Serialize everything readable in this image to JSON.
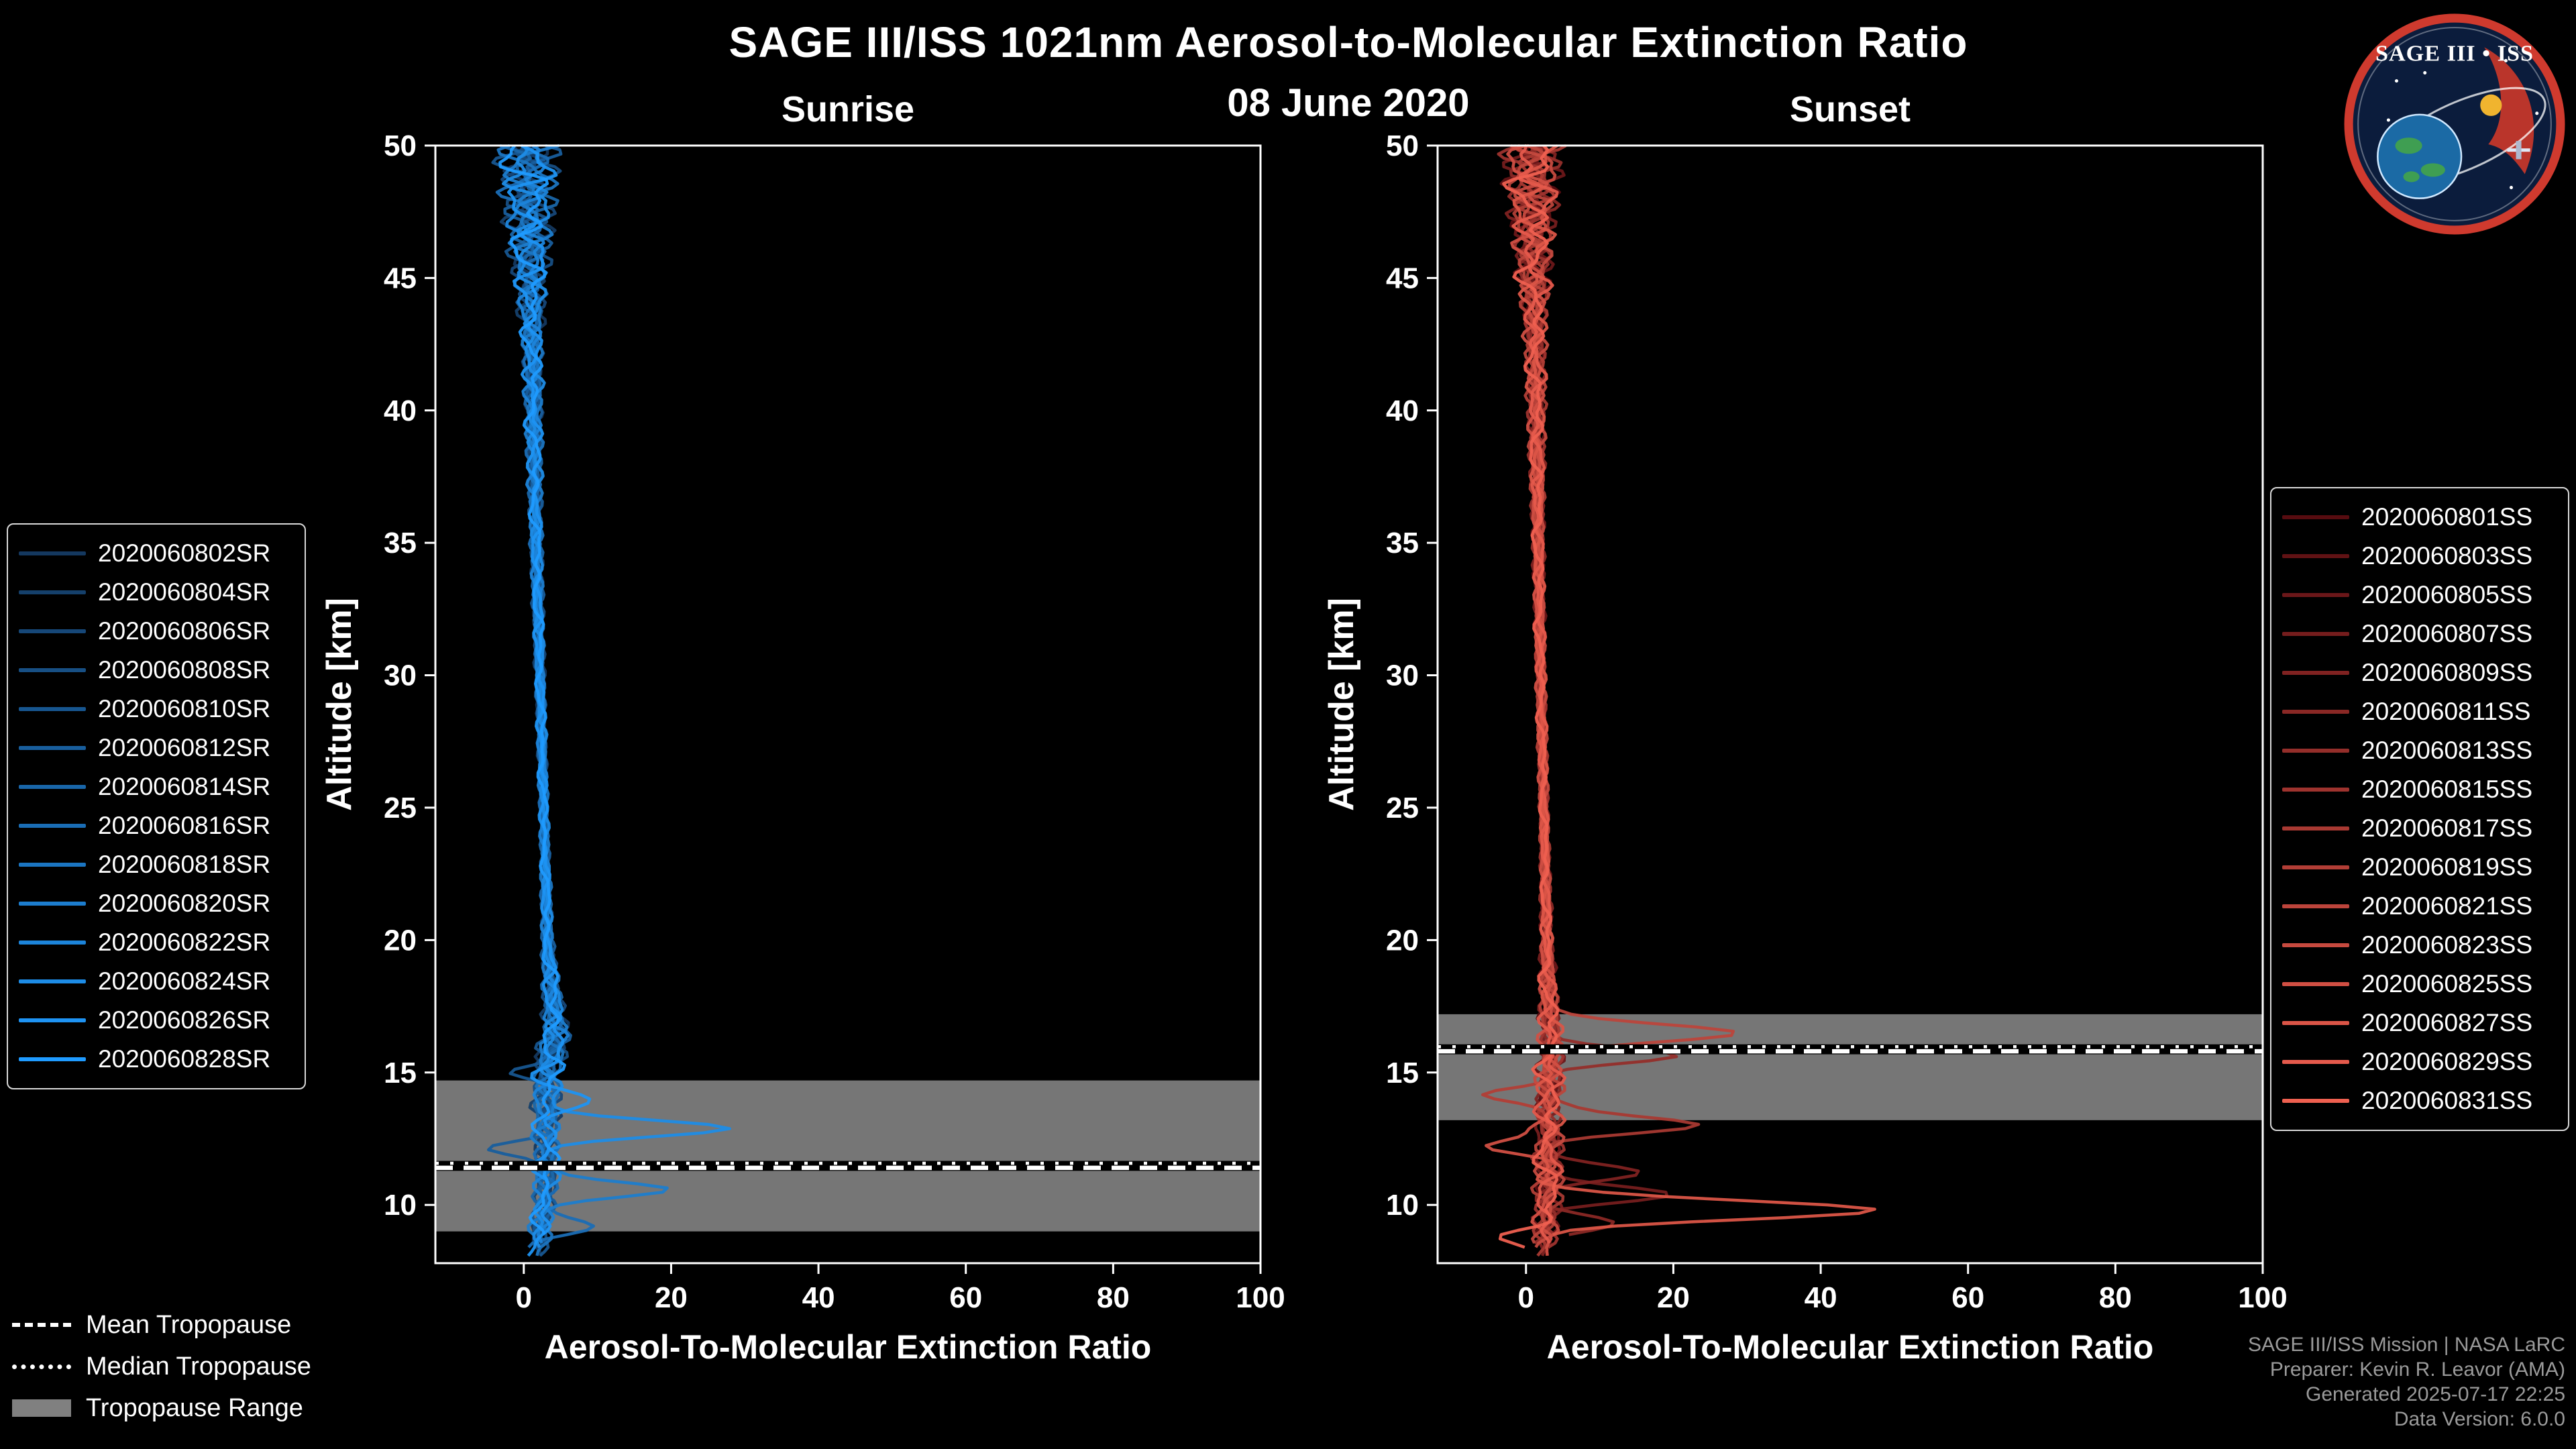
{
  "header": {
    "title": "SAGE III/ISS 1021nm Aerosol-to-Molecular Extinction Ratio",
    "date": "08 June 2020"
  },
  "panels": {
    "sunrise": {
      "title": "Sunrise"
    },
    "sunset": {
      "title": "Sunset"
    }
  },
  "axis": {
    "xlabel": "Aerosol-To-Molecular Extinction Ratio",
    "ylabel": "Altitude [km]"
  },
  "tropopause_legend": {
    "mean": "Mean Tropopause",
    "median": "Median Tropopause",
    "range": "Tropopause Range"
  },
  "footer": {
    "line1": "SAGE III/ISS Mission | NASA LaRC",
    "line2": "Preparer: Kevin R. Leavor (AMA)",
    "line3": "Generated 2025-07-17 22:25",
    "line4": "Data Version: 6.0.0"
  },
  "logo": {
    "title": "SAGE III • ISS"
  },
  "colors": {
    "background": "#000000",
    "text": "#ffffff",
    "footer_text": "#9a9a9a",
    "tropopause_band": "#7f7f7f",
    "spine": "#ffffff"
  },
  "chart_data": [
    {
      "type": "line",
      "title": "Sunrise",
      "xlabel": "Aerosol-To-Molecular Extinction Ratio",
      "ylabel": "Altitude [km]",
      "xlim": [
        -12,
        100
      ],
      "ylim": [
        7.8,
        50
      ],
      "xticks": [
        0,
        20,
        40,
        60,
        80,
        100
      ],
      "yticks": [
        10,
        15,
        20,
        25,
        30,
        35,
        40,
        45,
        50
      ],
      "seed": 0.7,
      "color_range": [
        "#14385f",
        "#1f9bff"
      ],
      "series_labels": [
        "2020060802SR",
        "2020060804SR",
        "2020060806SR",
        "2020060808SR",
        "2020060810SR",
        "2020060812SR",
        "2020060814SR",
        "2020060816SR",
        "2020060818SR",
        "2020060820SR",
        "2020060822SR",
        "2020060824SR",
        "2020060826SR",
        "2020060828SR"
      ],
      "base_profile": [
        [
          50,
          0.5
        ],
        [
          46,
          0.8
        ],
        [
          42,
          1.2
        ],
        [
          36,
          1.6
        ],
        [
          30,
          2.2
        ],
        [
          24,
          2.8
        ],
        [
          20,
          3.2
        ],
        [
          18,
          3.8
        ],
        [
          16.5,
          4.4
        ],
        [
          15,
          3.2
        ],
        [
          13.5,
          3.0
        ],
        [
          12,
          3.0
        ],
        [
          10.5,
          3.0
        ],
        [
          9,
          2.2
        ],
        [
          7.8,
          1.8
        ]
      ],
      "noise_amp": [
        [
          50,
          5.2
        ],
        [
          46,
          3.4
        ],
        [
          43,
          1.8
        ],
        [
          36,
          1.0
        ],
        [
          30,
          0.8
        ],
        [
          24,
          0.7
        ],
        [
          20,
          0.9
        ],
        [
          17.5,
          1.7
        ],
        [
          16,
          2.6
        ],
        [
          13,
          2.3
        ],
        [
          10.5,
          2.0
        ],
        [
          7.8,
          1.6
        ]
      ],
      "spikes": [
        {
          "series": 11,
          "alt": 12.9,
          "value": 25,
          "width": 0.45
        },
        {
          "series": 9,
          "alt": 10.6,
          "value": 16,
          "width": 0.4
        },
        {
          "series": 5,
          "alt": 12.1,
          "value": -7,
          "width": 0.35
        },
        {
          "series": 7,
          "alt": 9.2,
          "value": 7,
          "width": 0.4
        },
        {
          "series": 12,
          "alt": 14.0,
          "value": 6,
          "width": 0.4
        },
        {
          "series": 4,
          "alt": 15.0,
          "value": -6,
          "width": 0.35
        }
      ],
      "tropopause": {
        "mean_km": 11.4,
        "median_km": 11.55,
        "range_km": [
          9.0,
          14.7
        ]
      }
    },
    {
      "type": "line",
      "title": "Sunset",
      "xlabel": "Aerosol-To-Molecular Extinction Ratio",
      "ylabel": "Altitude [km]",
      "xlim": [
        -12,
        100
      ],
      "ylim": [
        7.8,
        50
      ],
      "xticks": [
        0,
        20,
        40,
        60,
        80,
        100
      ],
      "yticks": [
        10,
        15,
        20,
        25,
        30,
        35,
        40,
        45,
        50
      ],
      "seed": 3.9,
      "color_range": [
        "#570c10",
        "#ef6050"
      ],
      "series_labels": [
        "2020060801SS",
        "2020060803SS",
        "2020060805SS",
        "2020060807SS",
        "2020060809SS",
        "2020060811SS",
        "2020060813SS",
        "2020060815SS",
        "2020060817SS",
        "2020060819SS",
        "2020060821SS",
        "2020060823SS",
        "2020060825SS",
        "2020060827SS",
        "2020060829SS",
        "2020060831SS"
      ],
      "base_profile": [
        [
          50,
          0.8
        ],
        [
          46,
          1.0
        ],
        [
          42,
          1.3
        ],
        [
          36,
          1.6
        ],
        [
          30,
          2.0
        ],
        [
          24,
          2.5
        ],
        [
          20,
          2.8
        ],
        [
          18,
          3.0
        ],
        [
          16,
          3.4
        ],
        [
          14,
          3.0
        ],
        [
          12,
          3.0
        ],
        [
          10,
          3.0
        ],
        [
          7.8,
          2.0
        ]
      ],
      "noise_amp": [
        [
          50,
          5.0
        ],
        [
          46,
          3.2
        ],
        [
          43,
          1.8
        ],
        [
          36,
          1.0
        ],
        [
          30,
          0.8
        ],
        [
          24,
          0.7
        ],
        [
          20,
          1.0
        ],
        [
          17,
          1.8
        ],
        [
          15,
          2.4
        ],
        [
          12,
          2.4
        ],
        [
          9.5,
          2.2
        ],
        [
          7.8,
          1.8
        ]
      ],
      "spikes": [
        {
          "series": 10,
          "alt": 16.5,
          "value": 26,
          "width": 0.45
        },
        {
          "series": 6,
          "alt": 15.6,
          "value": 17,
          "width": 0.4
        },
        {
          "series": 8,
          "alt": 13.0,
          "value": 20,
          "width": 0.45
        },
        {
          "series": 12,
          "alt": 12.2,
          "value": -9,
          "width": 0.35
        },
        {
          "series": 4,
          "alt": 11.2,
          "value": 14,
          "width": 0.4
        },
        {
          "series": 3,
          "alt": 10.4,
          "value": 16,
          "width": 0.4
        },
        {
          "series": 13,
          "alt": 9.8,
          "value": 43,
          "width": 0.5
        },
        {
          "series": 9,
          "alt": 14.2,
          "value": -7,
          "width": 0.35
        },
        {
          "series": 15,
          "alt": 8.8,
          "value": -5,
          "width": 0.35
        },
        {
          "series": 5,
          "alt": 9.3,
          "value": 10,
          "width": 0.4
        }
      ],
      "tropopause": {
        "mean_km": 15.8,
        "median_km": 15.95,
        "range_km": [
          13.2,
          17.2
        ]
      }
    }
  ]
}
